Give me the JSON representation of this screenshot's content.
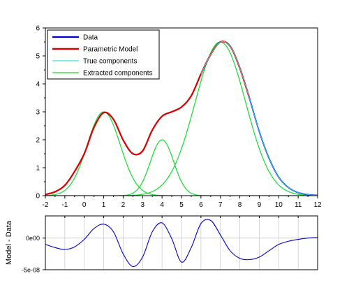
{
  "chart_data": [
    {
      "type": "line",
      "xlabel": "",
      "ylabel": "",
      "xlim": [
        -2,
        12
      ],
      "ylim": [
        0,
        6
      ],
      "x_ticks": [
        "-2",
        "-1",
        "0",
        "1",
        "2",
        "3",
        "4",
        "5",
        "6",
        "7",
        "8",
        "9",
        "10",
        "11",
        "12"
      ],
      "y_ticks": [
        "0",
        "1",
        "2",
        "3",
        "4",
        "5",
        "6"
      ],
      "grid": false,
      "legend_position": "top-left",
      "colors": {
        "data": "#0000cc",
        "model": "#dd0000",
        "true_components": "#33e6e6",
        "extracted_components": "#22dd22",
        "axis": "#000000"
      },
      "legend": [
        "Data",
        "Parametric Model",
        "True components",
        "Extracted components"
      ],
      "components": [
        {
          "center": 1.0,
          "amplitude": 3.0,
          "sigma": 0.85,
          "x_range": [
            -2,
            8.7
          ]
        },
        {
          "center": 4.0,
          "amplitude": 2.0,
          "sigma": 0.6,
          "x_range": [
            -2,
            8.7
          ]
        },
        {
          "center": 7.0,
          "amplitude": 5.5,
          "sigma": 1.3,
          "x_range": [
            2.0,
            12
          ]
        }
      ],
      "series": [
        {
          "name": "Data",
          "x": [
            -2,
            -1.5,
            -1,
            -0.5,
            0,
            0.5,
            1,
            1.5,
            2,
            2.5,
            3,
            3.5,
            4,
            4.5,
            5,
            5.5,
            6,
            6.5,
            7,
            7.5,
            8,
            8.5,
            9,
            9.5,
            10,
            10.5,
            11,
            11.5,
            12
          ],
          "y": [
            0.04,
            0.14,
            0.37,
            0.86,
            1.5,
            2.44,
            2.97,
            2.73,
            1.99,
            1.5,
            1.6,
            2.35,
            2.84,
            3.0,
            3.17,
            3.57,
            4.35,
            5.05,
            5.5,
            5.35,
            4.56,
            3.47,
            2.29,
            1.34,
            0.66,
            0.29,
            0.11,
            0.04,
            0.01
          ]
        },
        {
          "name": "Parametric Model",
          "x": [
            -2,
            -1.5,
            -1,
            -0.5,
            0,
            0.5,
            1,
            1.5,
            2,
            2.5,
            3,
            3.5,
            4,
            4.5,
            5,
            5.5,
            6,
            6.5,
            7,
            7.5,
            8,
            8.5,
            9,
            9.5,
            10,
            10.5,
            11,
            11.5,
            12
          ],
          "y": [
            0.04,
            0.14,
            0.37,
            0.86,
            1.5,
            2.44,
            2.97,
            2.73,
            1.99,
            1.5,
            1.6,
            2.35,
            2.84,
            3.0,
            3.17,
            3.57,
            4.35,
            5.05,
            5.5,
            5.35,
            4.56,
            3.47,
            2.29,
            1.34,
            0.66,
            0.29,
            0.11,
            0.04,
            0.01
          ],
          "range": [
            -2,
            8.6
          ]
        }
      ]
    },
    {
      "type": "line",
      "xlabel": "",
      "ylabel": "Model - Data",
      "xlim": [
        -2,
        12
      ],
      "ylim": [
        -5e-08,
        3.5e-08
      ],
      "y_ticks": [
        "0e00",
        "-5e-08"
      ],
      "grid": true,
      "colors": {
        "residual": "#0000cc",
        "grid": "#cccccc"
      },
      "series": [
        {
          "name": "",
          "x": [
            -2,
            -1.5,
            -1,
            -0.5,
            0,
            0.5,
            1,
            1.5,
            2,
            2.5,
            3,
            3.5,
            4,
            4.5,
            5,
            5.5,
            6,
            6.5,
            7,
            7.5,
            8,
            8.5,
            9,
            9.5,
            10,
            10.5,
            11,
            11.5,
            12
          ],
          "y": [
            -1e-08,
            -1.5e-08,
            -1.8e-08,
            -1.4e-08,
            -2e-09,
            1.5e-08,
            2.2e-08,
            1e-08,
            -2.5e-08,
            -4.5e-08,
            -3e-08,
            1e-08,
            2.4e-08,
            -1e-09,
            -3.8e-08,
            -1.5e-08,
            2.3e-08,
            2.8e-08,
            5e-09,
            -2e-08,
            -3.2e-08,
            -3.4e-08,
            -3e-08,
            -2e-08,
            -1e-08,
            -5e-09,
            -2e-09,
            0,
            1e-09
          ]
        }
      ]
    }
  ]
}
